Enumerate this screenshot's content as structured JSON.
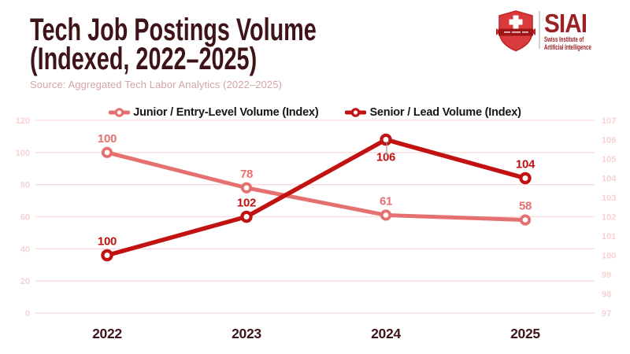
{
  "header": {
    "title_line1": "Tech Job Postings Volume",
    "title_line2": "(Indexed, 2022–2025)",
    "source": "Source: Aggregated Tech Labor Analytics (2022–2025)"
  },
  "logo": {
    "name": "SIAI",
    "subtitle_line1": "Swiss Institute of",
    "subtitle_line2": "Artificial Intelligence"
  },
  "colors": {
    "junior": "#e57070",
    "senior": "#c11111",
    "title": "#3e1418",
    "source_text": "#d3a4a6",
    "grid": "#f8dcdc",
    "axis_tick_label": "#f8d2d2",
    "legend_text": "#161616",
    "logo_red": "#9b2125",
    "shield_red": "#d93a3c",
    "banner_red": "#9e1418"
  },
  "chart_data": {
    "type": "line",
    "title": "Tech Job Postings Volume (Indexed, 2022–2025)",
    "x": [
      "2022",
      "2023",
      "2024",
      "2025"
    ],
    "series": [
      {
        "name": "Junior / Entry-Level Volume (Index)",
        "axis": "left",
        "color": "#e57070",
        "values": [
          100,
          78,
          61,
          58
        ],
        "label_positions": [
          "above",
          "above",
          "above",
          "above"
        ]
      },
      {
        "name": "Senior / Lead Volume (Index)",
        "axis": "right",
        "color": "#c11111",
        "values": [
          100,
          102,
          106,
          104
        ],
        "label_positions": [
          "above",
          "above",
          "below",
          "above"
        ]
      }
    ],
    "left_axis": {
      "min": 0,
      "max": 120,
      "ticks": [
        0,
        20,
        40,
        60,
        80,
        100,
        120
      ]
    },
    "right_axis": {
      "min": 97,
      "max": 107,
      "ticks": [
        97,
        98,
        99,
        100,
        101,
        102,
        103,
        104,
        105,
        106,
        107
      ]
    },
    "grid": true,
    "legend_position": "top"
  }
}
